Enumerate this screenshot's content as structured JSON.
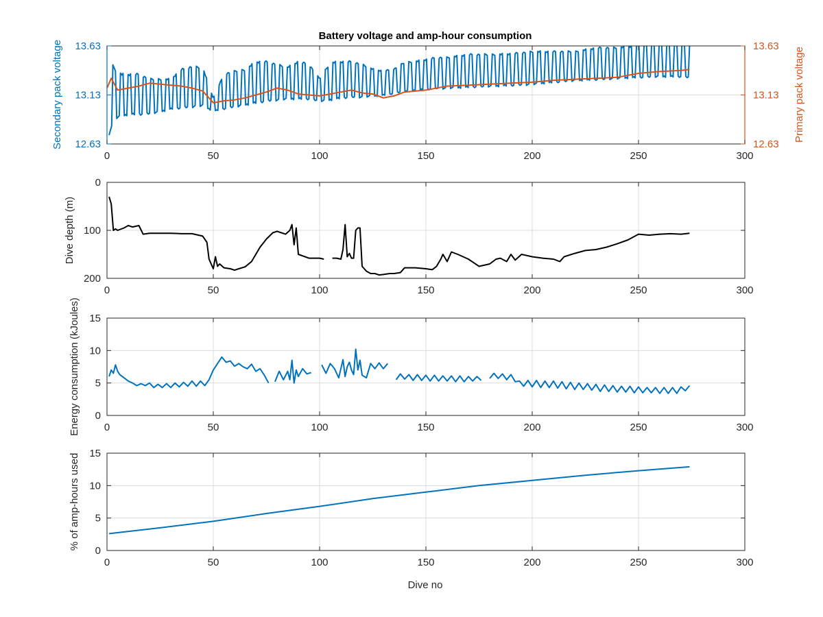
{
  "figure": {
    "title": "Battery voltage and amp-hour consumption"
  },
  "chart_data": [
    {
      "type": "line",
      "title": "Battery voltage and amp-hour consumption",
      "xlabel": "",
      "ylabel": "Secondary pack voltage",
      "ylabel_right": "Primary pack voltage",
      "xlim": [
        0,
        300
      ],
      "ylim": [
        12.63,
        13.63
      ],
      "ylim_right": [
        12.63,
        13.63
      ],
      "xticks": [
        0,
        50,
        100,
        150,
        200,
        250,
        300
      ],
      "yticks": [
        12.63,
        13.13,
        13.63
      ],
      "yticks_right": [
        12.63,
        13.13,
        13.63
      ],
      "grid": true,
      "series": [
        {
          "axis": "left",
          "color": "#0072BD",
          "style": "oscillating",
          "x": [
            1,
            4,
            7,
            10,
            15,
            20,
            25,
            30,
            35,
            40,
            45,
            50,
            55,
            60,
            65,
            70,
            75,
            80,
            85,
            90,
            95,
            100,
            105,
            110,
            115,
            120,
            125,
            130,
            135,
            140,
            145,
            150,
            155,
            160,
            170,
            180,
            190,
            200,
            210,
            220,
            230,
            240,
            250,
            260,
            270,
            274
          ],
          "low": [
            12.72,
            12.88,
            12.9,
            12.92,
            12.92,
            12.93,
            12.95,
            12.98,
            12.99,
            13.0,
            13.01,
            12.96,
            12.98,
            13.0,
            13.02,
            13.04,
            13.06,
            13.07,
            13.08,
            13.08,
            13.08,
            13.06,
            13.07,
            13.09,
            13.1,
            13.1,
            13.11,
            13.12,
            13.14,
            13.16,
            13.17,
            13.18,
            13.19,
            13.19,
            13.2,
            13.21,
            13.22,
            13.23,
            13.25,
            13.27,
            13.28,
            13.29,
            13.3,
            13.31,
            13.31,
            13.3
          ],
          "high": [
            13.5,
            13.4,
            13.35,
            13.35,
            13.35,
            13.3,
            13.3,
            13.3,
            13.4,
            13.43,
            13.42,
            13.1,
            13.35,
            13.38,
            13.4,
            13.48,
            13.48,
            13.45,
            13.42,
            13.48,
            13.45,
            13.3,
            13.47,
            13.48,
            13.48,
            13.45,
            13.4,
            13.38,
            13.4,
            13.47,
            13.48,
            13.5,
            13.52,
            13.52,
            13.55,
            13.55,
            13.56,
            13.58,
            13.58,
            13.58,
            13.62,
            13.62,
            13.64,
            13.65,
            13.65,
            13.65
          ]
        },
        {
          "axis": "right",
          "color": "#D95319",
          "style": "line",
          "x": [
            0,
            2,
            5,
            10,
            15,
            20,
            25,
            30,
            35,
            40,
            45,
            48,
            50,
            55,
            60,
            65,
            70,
            75,
            80,
            85,
            90,
            95,
            100,
            105,
            110,
            115,
            120,
            125,
            130,
            135,
            140,
            150,
            160,
            170,
            180,
            190,
            200,
            210,
            220,
            230,
            240,
            250,
            260,
            270,
            274
          ],
          "y": [
            13.2,
            13.3,
            13.18,
            13.2,
            13.22,
            13.25,
            13.24,
            13.23,
            13.22,
            13.2,
            13.17,
            13.1,
            13.05,
            13.07,
            13.08,
            13.1,
            13.13,
            13.16,
            13.2,
            13.18,
            13.14,
            13.13,
            13.12,
            13.14,
            13.16,
            13.18,
            13.15,
            13.14,
            13.1,
            13.12,
            13.16,
            13.18,
            13.22,
            13.23,
            13.24,
            13.25,
            13.26,
            13.28,
            13.29,
            13.3,
            13.31,
            13.35,
            13.37,
            13.38,
            13.39
          ]
        }
      ]
    },
    {
      "type": "line",
      "title": "",
      "xlabel": "",
      "ylabel": "Dive depth (m)",
      "xlim": [
        0,
        300
      ],
      "ylim": [
        0,
        200
      ],
      "y_reversed": true,
      "xticks": [
        0,
        50,
        100,
        150,
        200,
        250,
        300
      ],
      "yticks": [
        0,
        100,
        200
      ],
      "grid": true,
      "series": [
        {
          "color": "#000000",
          "x": [
            1,
            2,
            3,
            4,
            5,
            8,
            10,
            12,
            15,
            17,
            20,
            25,
            30,
            35,
            40,
            45,
            47,
            48,
            50,
            51,
            52,
            53,
            55,
            58,
            60,
            62,
            65,
            68,
            70,
            72,
            75,
            78,
            80,
            82,
            84,
            86,
            87,
            88,
            89,
            90,
            95,
            100,
            102,
            null,
            106,
            108,
            110,
            111,
            112,
            113,
            114,
            115,
            116,
            117,
            118,
            119,
            120,
            122,
            124,
            126,
            128,
            130,
            133,
            135,
            138,
            140,
            145,
            150,
            153,
            155,
            157,
            158,
            160,
            162,
            165,
            170,
            175,
            180,
            183,
            185,
            188,
            190,
            192,
            195,
            200,
            205,
            210,
            213,
            215,
            220,
            225,
            230,
            235,
            240,
            245,
            250,
            255,
            260,
            265,
            270,
            274
          ],
          "y": [
            30,
            45,
            100,
            97,
            100,
            95,
            90,
            93,
            90,
            108,
            106,
            106,
            106,
            107,
            107,
            112,
            125,
            160,
            180,
            155,
            175,
            170,
            178,
            180,
            183,
            180,
            176,
            165,
            150,
            135,
            118,
            105,
            102,
            105,
            108,
            100,
            88,
            130,
            95,
            150,
            158,
            158,
            160,
            null,
            158,
            158,
            160,
            140,
            88,
            155,
            148,
            158,
            158,
            100,
            95,
            95,
            175,
            185,
            190,
            190,
            193,
            192,
            190,
            190,
            188,
            178,
            178,
            180,
            182,
            175,
            160,
            150,
            165,
            145,
            150,
            160,
            175,
            170,
            160,
            158,
            165,
            150,
            162,
            150,
            155,
            158,
            160,
            165,
            155,
            148,
            142,
            140,
            135,
            128,
            120,
            108,
            110,
            108,
            107,
            108,
            106
          ]
        }
      ]
    },
    {
      "type": "line",
      "title": "",
      "xlabel": "",
      "ylabel": "Energy consumption (kJoules)",
      "xlim": [
        0,
        300
      ],
      "ylim": [
        0,
        15
      ],
      "xticks": [
        0,
        50,
        100,
        150,
        200,
        250,
        300
      ],
      "yticks": [
        0,
        5,
        10,
        15
      ],
      "grid": true,
      "series": [
        {
          "color": "#0072BD",
          "x": [
            1,
            2,
            3,
            4,
            5,
            6,
            8,
            10,
            12,
            14,
            16,
            18,
            20,
            22,
            24,
            26,
            28,
            30,
            32,
            34,
            36,
            38,
            40,
            42,
            44,
            46,
            48,
            50,
            52,
            54,
            56,
            58,
            60,
            62,
            64,
            66,
            68,
            70,
            72,
            74,
            76,
            null,
            79,
            81,
            83,
            85,
            86,
            87,
            88,
            89,
            90,
            92,
            94,
            96,
            null,
            101,
            103,
            105,
            107,
            109,
            111,
            112,
            113,
            114,
            115,
            116,
            117,
            118,
            119,
            120,
            122,
            124,
            126,
            128,
            130,
            132,
            null,
            136,
            138,
            140,
            142,
            144,
            146,
            148,
            150,
            152,
            154,
            156,
            158,
            160,
            162,
            164,
            166,
            168,
            170,
            172,
            174,
            176,
            null,
            180,
            182,
            184,
            186,
            188,
            190,
            192,
            194,
            196,
            198,
            200,
            202,
            204,
            206,
            208,
            210,
            212,
            214,
            216,
            218,
            220,
            222,
            224,
            226,
            228,
            230,
            232,
            234,
            236,
            238,
            240,
            242,
            244,
            246,
            248,
            250,
            252,
            254,
            256,
            258,
            260,
            262,
            264,
            266,
            268,
            270,
            272,
            274
          ],
          "y": [
            6.0,
            7.0,
            6.5,
            7.8,
            6.8,
            6.3,
            5.8,
            5.3,
            5.0,
            4.6,
            4.9,
            4.6,
            5.0,
            4.3,
            4.8,
            4.3,
            4.9,
            4.3,
            5.0,
            4.4,
            5.1,
            4.5,
            5.3,
            4.5,
            5.3,
            4.6,
            5.5,
            7.0,
            8.0,
            9.0,
            8.2,
            8.4,
            7.6,
            8.0,
            7.5,
            7.2,
            7.9,
            6.8,
            7.2,
            6.2,
            5.0,
            null,
            5.2,
            6.8,
            5.5,
            6.8,
            5.5,
            8.5,
            5.0,
            7.0,
            6.0,
            7.2,
            6.4,
            6.6,
            null,
            7.8,
            6.5,
            8.0,
            7.2,
            5.8,
            8.6,
            6.0,
            7.5,
            8.2,
            7.0,
            6.3,
            10.2,
            7.0,
            8.5,
            6.2,
            5.8,
            8.0,
            7.2,
            8.1,
            7.2,
            8.0,
            null,
            5.5,
            6.4,
            5.6,
            6.3,
            5.4,
            6.3,
            5.4,
            6.2,
            5.3,
            6.2,
            5.3,
            6.1,
            5.3,
            6.1,
            5.2,
            6.1,
            5.2,
            6.0,
            5.3,
            6.0,
            5.4,
            null,
            5.7,
            6.5,
            5.7,
            6.4,
            5.5,
            6.3,
            5.2,
            5.3,
            4.5,
            5.4,
            4.4,
            5.4,
            4.3,
            5.3,
            4.3,
            5.3,
            4.2,
            5.2,
            4.1,
            5.1,
            4.0,
            5.0,
            4.0,
            4.9,
            3.9,
            4.8,
            3.7,
            4.7,
            3.7,
            4.6,
            3.6,
            4.5,
            3.6,
            4.5,
            3.5,
            4.4,
            3.5,
            4.3,
            3.5,
            4.3,
            3.4,
            4.3,
            3.4,
            4.3,
            3.4,
            4.4,
            3.8,
            4.6
          ]
        }
      ]
    },
    {
      "type": "line",
      "title": "",
      "xlabel": "Dive no",
      "ylabel": "% of amp-hours used",
      "xlim": [
        0,
        300
      ],
      "ylim": [
        0,
        15
      ],
      "xticks": [
        0,
        50,
        100,
        150,
        200,
        250,
        300
      ],
      "yticks": [
        0,
        5,
        10,
        15
      ],
      "grid": true,
      "series": [
        {
          "color": "#0072BD",
          "x": [
            1,
            25,
            50,
            75,
            100,
            125,
            150,
            175,
            200,
            225,
            250,
            274
          ],
          "y": [
            2.6,
            3.5,
            4.5,
            5.7,
            6.8,
            8.0,
            9.0,
            10.0,
            10.8,
            11.6,
            12.3,
            12.9
          ]
        }
      ]
    }
  ]
}
